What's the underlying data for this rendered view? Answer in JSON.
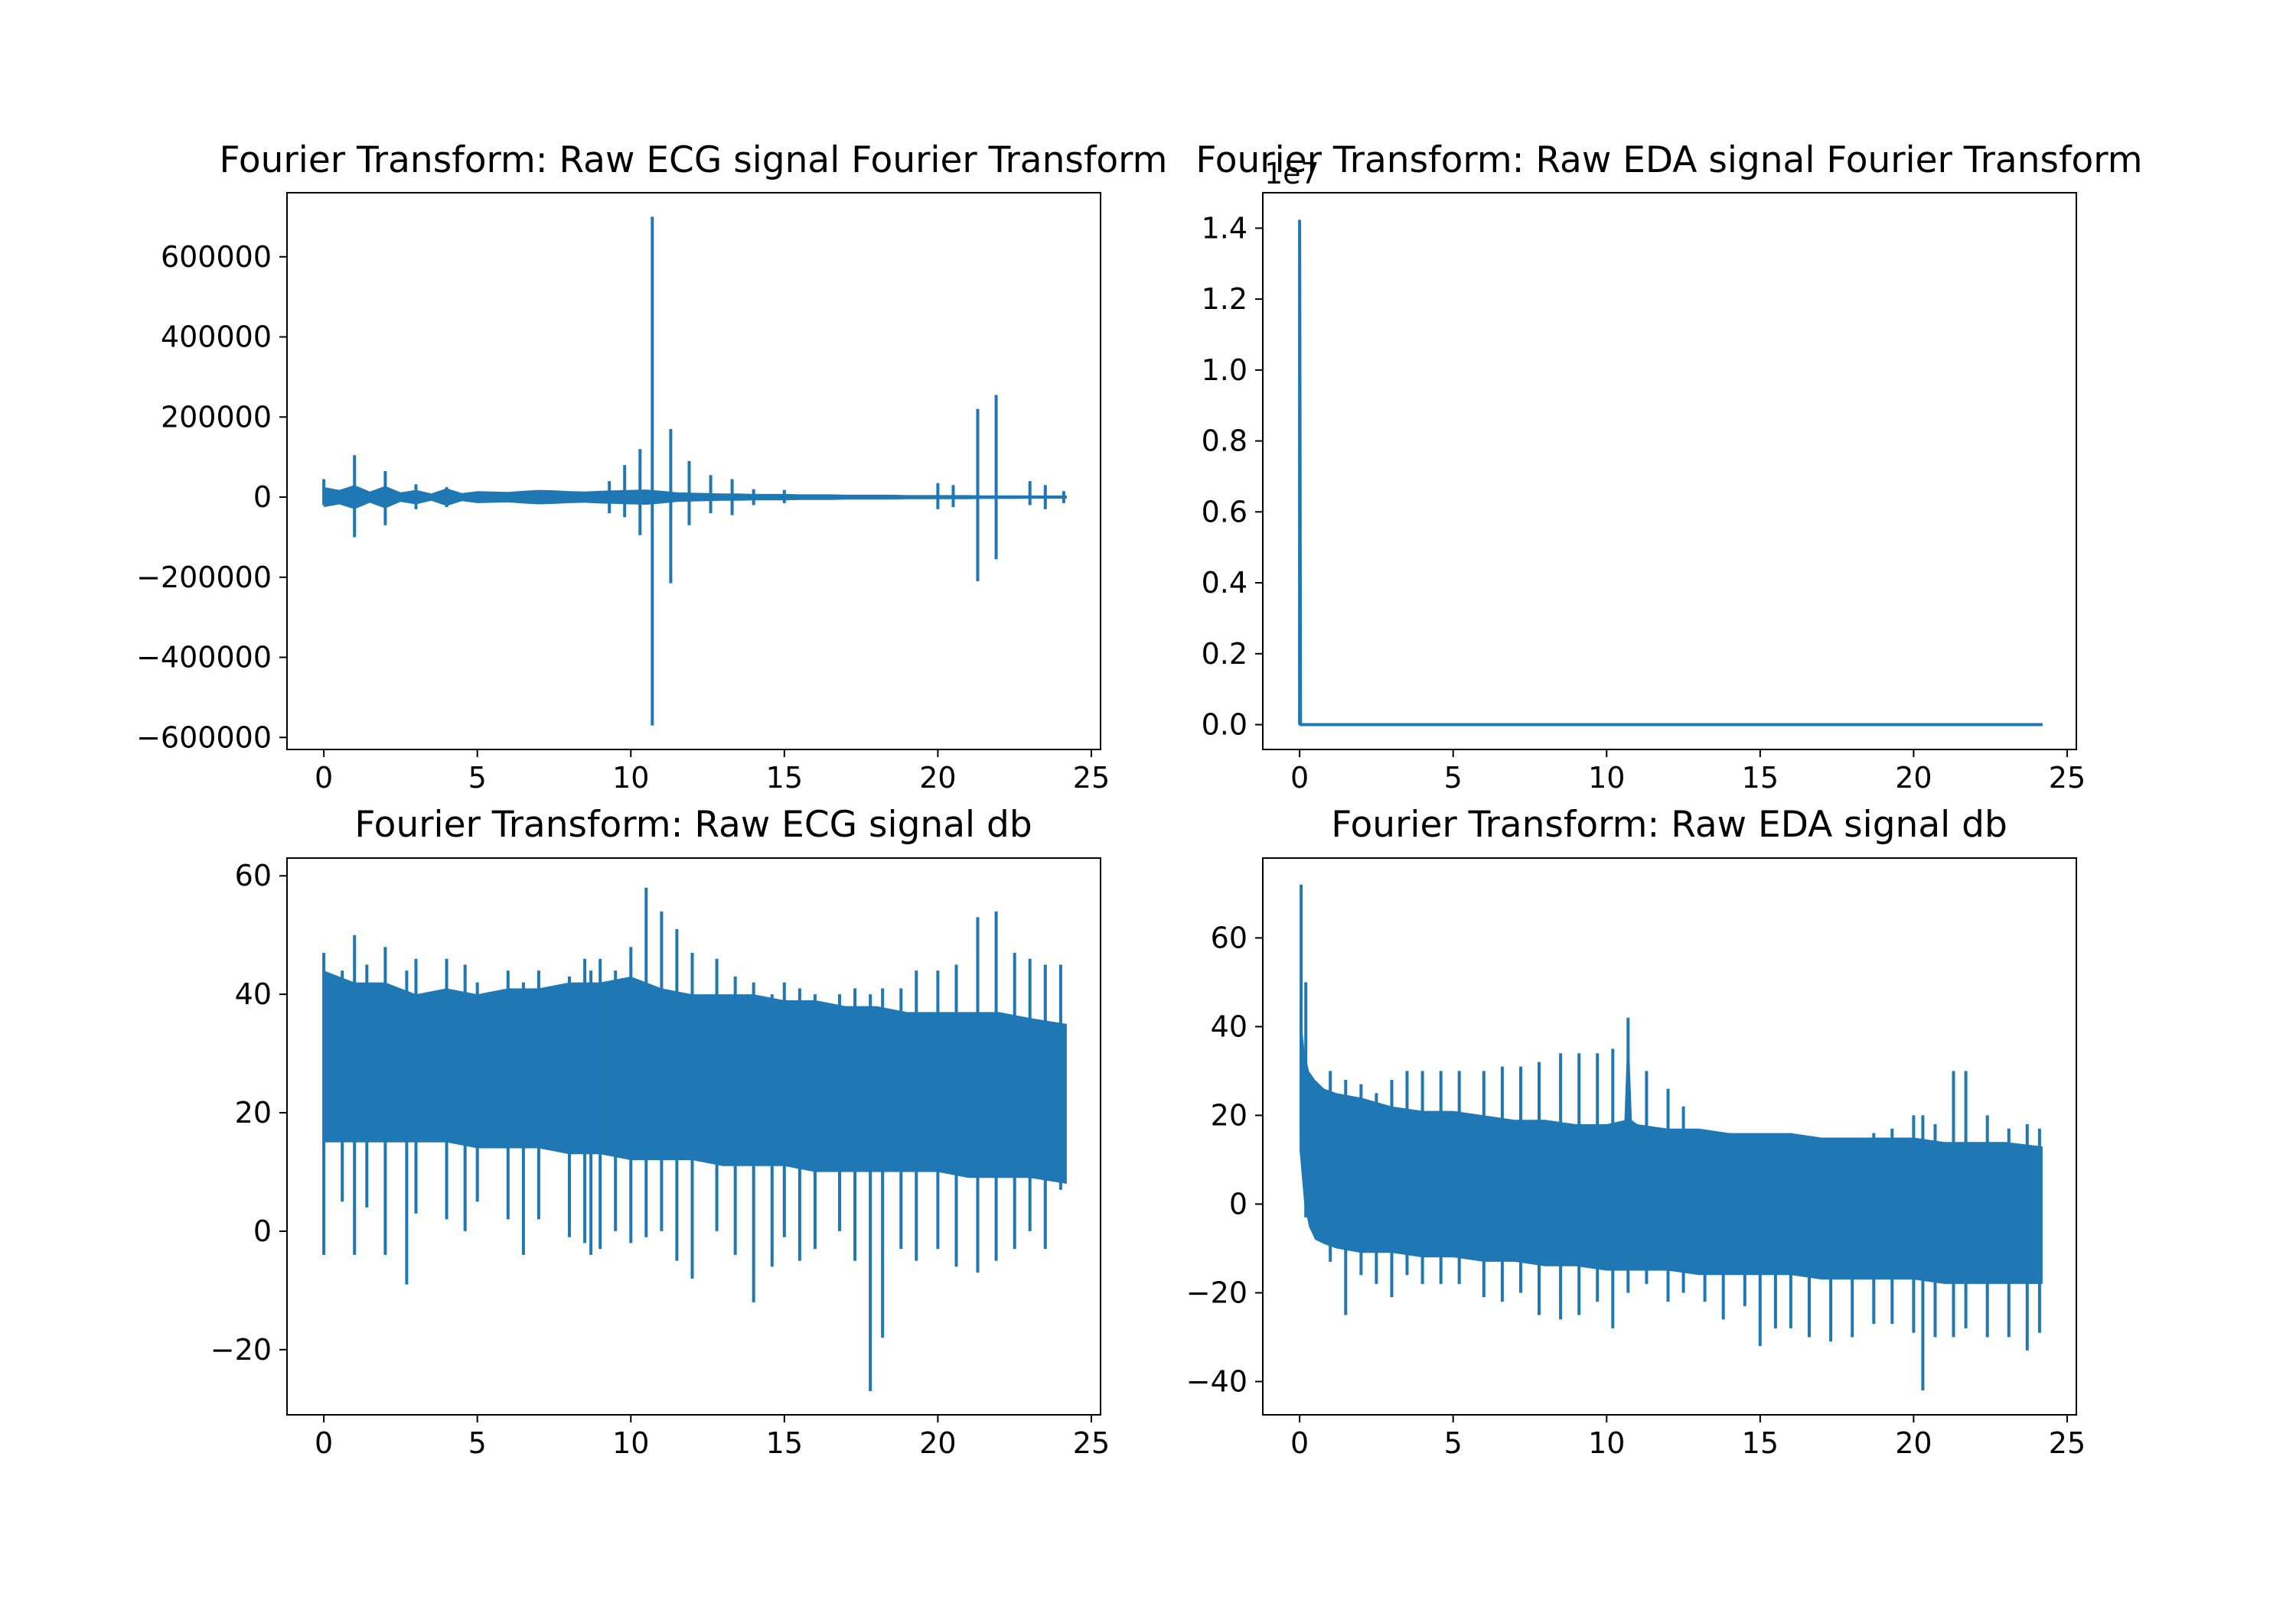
{
  "chart_data": [
    {
      "type": "line",
      "title": "Fourier Transform: Raw ECG signal Fourier Transform",
      "xlabel": "",
      "ylabel": "",
      "xlim": [
        -1.2,
        25.3
      ],
      "ylim": [
        -630000,
        760000
      ],
      "xticks": [
        0,
        5,
        10,
        15,
        20,
        25
      ],
      "xtick_labels": [
        "0",
        "5",
        "10",
        "15",
        "20",
        "25"
      ],
      "yticks": [
        -600000,
        -400000,
        -200000,
        0,
        200000,
        400000,
        600000
      ],
      "ytick_labels": [
        "−600000",
        "−400000",
        "−200000",
        "0",
        "200000",
        "400000",
        "600000"
      ],
      "grid": false,
      "legend": "none",
      "color": "#1f77b4",
      "series": [
        {
          "kind": "band",
          "x": [
            0,
            0.5,
            1,
            1.5,
            2,
            2.5,
            3,
            3.5,
            4,
            4.5,
            5,
            5.5,
            6,
            6.5,
            7,
            7.5,
            8,
            8.5,
            9,
            9.5,
            10,
            10.5,
            11,
            11.5,
            12,
            12.5,
            13,
            13.5,
            14,
            14.5,
            15,
            15.5,
            16,
            16.5,
            17,
            17.5,
            18,
            18.5,
            19,
            19.5,
            20,
            20.5,
            21,
            21.5,
            22,
            22.5,
            23,
            23.5,
            24.2
          ],
          "upper": [
            25000,
            18000,
            30000,
            14000,
            28000,
            12000,
            18000,
            9000,
            22000,
            10000,
            15000,
            14000,
            13000,
            16000,
            18000,
            17000,
            15000,
            14000,
            16000,
            17000,
            18000,
            19000,
            16000,
            12000,
            11000,
            10000,
            9000,
            9000,
            8000,
            8000,
            8000,
            7000,
            7000,
            7000,
            6000,
            6000,
            6000,
            6000,
            5000,
            5000,
            5000,
            5000,
            5000,
            4500,
            4500,
            4500,
            4000,
            4000,
            4000
          ],
          "lower": [
            -25000,
            -18000,
            -30000,
            -14000,
            -28000,
            -12000,
            -18000,
            -9000,
            -22000,
            -10000,
            -15000,
            -14000,
            -13000,
            -16000,
            -18000,
            -17000,
            -15000,
            -14000,
            -16000,
            -17000,
            -18000,
            -19000,
            -16000,
            -12000,
            -11000,
            -10000,
            -9000,
            -9000,
            -8000,
            -8000,
            -8000,
            -7000,
            -7000,
            -7000,
            -6000,
            -6000,
            -6000,
            -6000,
            -5000,
            -5000,
            -5000,
            -5000,
            -5000,
            -4500,
            -4500,
            -4500,
            -4000,
            -4000,
            -4000
          ]
        },
        {
          "kind": "spikes",
          "x": [
            0,
            1,
            2,
            3,
            4,
            9.3,
            9.8,
            10.3,
            10.7,
            11.3,
            11.9,
            12.6,
            13.3,
            14,
            15,
            20,
            20.5,
            21.3,
            21.9,
            23,
            23.5,
            24.1
          ],
          "max": [
            45000,
            105000,
            65000,
            32000,
            25000,
            40000,
            80000,
            120000,
            700000,
            170000,
            90000,
            55000,
            45000,
            20000,
            18000,
            35000,
            30000,
            220000,
            255000,
            40000,
            30000,
            15000
          ],
          "min": [
            -20000,
            -100000,
            -70000,
            -30000,
            -25000,
            -40000,
            -50000,
            -95000,
            -570000,
            -215000,
            -70000,
            -40000,
            -45000,
            -20000,
            -15000,
            -30000,
            -25000,
            -210000,
            -155000,
            -20000,
            -30000,
            -15000
          ]
        }
      ]
    },
    {
      "type": "line",
      "title": "Fourier Transform: Raw EDA signal Fourier Transform",
      "xlabel": "",
      "ylabel": "",
      "axis_offset_label": "1e7",
      "xlim": [
        -1.2,
        25.3
      ],
      "ylim": [
        -0.07,
        1.5
      ],
      "xticks": [
        0,
        5,
        10,
        15,
        20,
        25
      ],
      "xtick_labels": [
        "0",
        "5",
        "10",
        "15",
        "20",
        "25"
      ],
      "yticks": [
        0,
        0.2,
        0.4,
        0.6,
        0.8,
        1.0,
        1.2,
        1.4
      ],
      "ytick_labels": [
        "0.0",
        "0.2",
        "0.4",
        "0.6",
        "0.8",
        "1.0",
        "1.2",
        "1.4"
      ],
      "grid": false,
      "legend": "none",
      "color": "#1f77b4",
      "series": [
        {
          "kind": "line",
          "x": [
            0,
            0,
            0.03,
            24.2
          ],
          "y": [
            0.0,
            1.42,
            0.0,
            0.0
          ]
        }
      ]
    },
    {
      "type": "line",
      "title": "Fourier Transform: Raw ECG signal db",
      "xlabel": "",
      "ylabel": "",
      "xlim": [
        -1.2,
        25.3
      ],
      "ylim": [
        -31,
        63
      ],
      "xticks": [
        0,
        5,
        10,
        15,
        20,
        25
      ],
      "xtick_labels": [
        "0",
        "5",
        "10",
        "15",
        "20",
        "25"
      ],
      "yticks": [
        -20,
        0,
        20,
        40,
        60
      ],
      "ytick_labels": [
        "−20",
        "0",
        "20",
        "40",
        "60"
      ],
      "grid": false,
      "legend": "none",
      "color": "#1f77b4",
      "series": [
        {
          "kind": "band",
          "x": [
            0,
            1,
            2,
            3,
            4,
            5,
            6,
            7,
            8,
            9,
            10,
            11,
            12,
            13,
            14,
            15,
            16,
            17,
            18,
            19,
            20,
            21,
            22,
            23,
            24.2
          ],
          "upper": [
            44,
            42,
            42,
            40,
            41,
            40,
            41,
            41,
            42,
            42,
            43,
            41,
            40,
            40,
            40,
            39,
            39,
            38,
            38,
            37,
            37,
            37,
            37,
            36,
            35
          ],
          "lower": [
            15,
            15,
            15,
            15,
            15,
            14,
            14,
            14,
            13,
            13,
            12,
            12,
            12,
            11,
            11,
            11,
            10,
            10,
            10,
            10,
            10,
            9,
            9,
            9,
            8
          ]
        },
        {
          "kind": "spikes",
          "x": [
            0,
            0.6,
            1,
            1.4,
            2,
            2.7,
            3,
            4,
            4.6,
            5,
            6,
            6.5,
            7,
            8,
            8.5,
            8.7,
            9,
            9.5,
            10,
            10.5,
            11,
            11.5,
            12,
            12.8,
            13.4,
            14,
            14.6,
            15,
            15.5,
            16,
            16.8,
            17.3,
            17.8,
            18.2,
            18.8,
            19.3,
            20,
            20.6,
            21.3,
            21.9,
            22.5,
            23,
            23.5,
            24
          ],
          "max": [
            47,
            44,
            50,
            45,
            48,
            44,
            46,
            46,
            45,
            42,
            44,
            42,
            44,
            43,
            46,
            44,
            46,
            44,
            48,
            58,
            54,
            51,
            47,
            46,
            43,
            42,
            40,
            42,
            41,
            40,
            40,
            41,
            40,
            41,
            41,
            44,
            44,
            45,
            53,
            54,
            47,
            46,
            45,
            45
          ],
          "min": [
            -4,
            5,
            -4,
            4,
            -4,
            -9,
            3,
            2,
            0,
            5,
            2,
            -4,
            2,
            -1,
            -2,
            -4,
            -3,
            0,
            -2,
            -1,
            0,
            -5,
            -8,
            0,
            -4,
            -12,
            -6,
            -1,
            -5,
            -3,
            0,
            -5,
            -27,
            -18,
            -3,
            -5,
            -3,
            -6,
            -7,
            -5,
            -3,
            0,
            -3,
            7
          ]
        }
      ]
    },
    {
      "type": "line",
      "title": "Fourier Transform: Raw EDA signal db",
      "xlabel": "",
      "ylabel": "",
      "xlim": [
        -1.2,
        25.3
      ],
      "ylim": [
        -47.5,
        78
      ],
      "xticks": [
        0,
        5,
        10,
        15,
        20,
        25
      ],
      "xtick_labels": [
        "0",
        "5",
        "10",
        "15",
        "20",
        "25"
      ],
      "yticks": [
        -40,
        -20,
        0,
        20,
        40,
        60
      ],
      "ytick_labels": [
        "−40",
        "−20",
        "0",
        "20",
        "40",
        "60"
      ],
      "grid": false,
      "legend": "none",
      "color": "#1f77b4",
      "series": [
        {
          "kind": "band",
          "x": [
            0,
            0.15,
            0.3,
            0.5,
            0.8,
            1.2,
            2,
            3,
            4,
            5,
            6,
            7,
            8,
            9,
            10,
            11,
            12,
            13,
            14,
            15,
            16,
            17,
            18,
            19,
            20,
            21,
            22,
            23,
            24.2
          ],
          "upper": [
            45,
            35,
            30,
            28,
            26,
            25,
            24,
            22,
            21,
            21,
            20,
            19,
            19,
            18,
            18,
            18,
            17,
            17,
            16,
            16,
            16,
            15,
            15,
            15,
            15,
            14,
            14,
            14,
            13
          ],
          "lower": [
            12,
            0,
            -5,
            -8,
            -9,
            -10,
            -11,
            -11,
            -12,
            -12,
            -13,
            -13,
            -14,
            -14,
            -15,
            -15,
            -15,
            -16,
            -16,
            -16,
            -16,
            -17,
            -17,
            -17,
            -17,
            -18,
            -18,
            -18,
            -18
          ],
          "upper_peak_x": 10.7,
          "upper_peak_y": 42
        },
        {
          "kind": "spikes",
          "x": [
            0.05,
            0.2,
            1,
            1.5,
            2,
            2.5,
            3,
            3.5,
            4,
            4.6,
            5.2,
            6,
            6.6,
            7.2,
            7.8,
            8.5,
            9.1,
            9.7,
            10.2,
            10.7,
            11.3,
            12,
            12.5,
            13.2,
            13.8,
            14.5,
            15,
            15.5,
            16,
            16.6,
            17.3,
            18,
            18.7,
            19.3,
            20,
            20.3,
            20.7,
            21.3,
            21.7,
            22.4,
            23.1,
            23.7,
            24.1
          ],
          "max": [
            72,
            50,
            30,
            28,
            27,
            25,
            28,
            30,
            30,
            30,
            30,
            30,
            31,
            31,
            32,
            34,
            34,
            34,
            35,
            42,
            30,
            26,
            22,
            16,
            16,
            15,
            14,
            15,
            16,
            14,
            14,
            14,
            16,
            17,
            20,
            20,
            18,
            30,
            30,
            20,
            17,
            18,
            17
          ],
          "min": [
            15,
            -3,
            -13,
            -25,
            -16,
            -18,
            -21,
            -16,
            -18,
            -18,
            -18,
            -21,
            -22,
            -20,
            -25,
            -26,
            -25,
            -22,
            -28,
            -20,
            -18,
            -22,
            -20,
            -22,
            -26,
            -23,
            -32,
            -28,
            -28,
            -30,
            -31,
            -30,
            -27,
            -27,
            -29,
            -42,
            -30,
            -30,
            -28,
            -30,
            -30,
            -33,
            -29
          ]
        }
      ]
    }
  ]
}
